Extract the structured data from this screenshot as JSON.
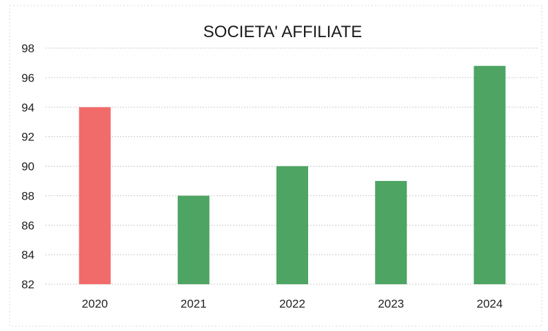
{
  "chart_data": {
    "type": "bar",
    "title": "SOCIETA' AFFILIATE",
    "xlabel": "",
    "ylabel": "",
    "categories": [
      "2020",
      "2021",
      "2022",
      "2023",
      "2024"
    ],
    "values": [
      94,
      88,
      90,
      89,
      96.8
    ],
    "bar_colors": [
      "#f26b6b",
      "#4ea463",
      "#4ea463",
      "#4ea463",
      "#4ea463"
    ],
    "ylim": [
      82,
      98
    ],
    "yticks": [
      "82",
      "84",
      "86",
      "88",
      "90",
      "92",
      "94",
      "96",
      "98"
    ],
    "grid": true,
    "legend": "none"
  }
}
